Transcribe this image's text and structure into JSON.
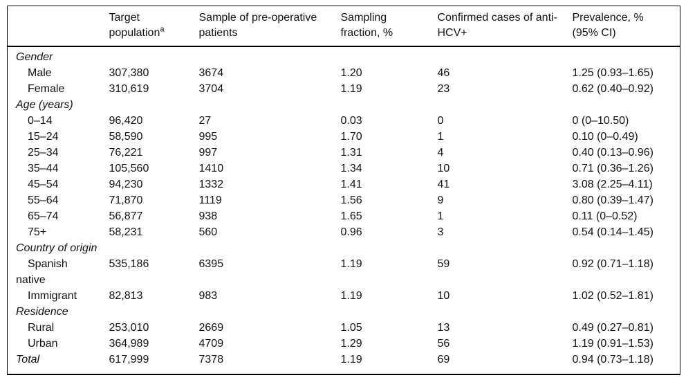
{
  "colors": {
    "text": "#111111",
    "border": "#000000",
    "background": "#ffffff"
  },
  "table": {
    "columns": [
      {
        "key": "label",
        "label": ""
      },
      {
        "key": "target_population",
        "label": "Target\npopulation",
        "superscript": "a"
      },
      {
        "key": "sample",
        "label": "Sample of pre-operative\npatients"
      },
      {
        "key": "sampling_fraction",
        "label": "Sampling\nfraction, %"
      },
      {
        "key": "confirmed_cases",
        "label": "Confirmed cases of anti-\nHCV+"
      },
      {
        "key": "prevalence",
        "label": "Prevalence, %\n(95% CI)"
      }
    ],
    "rows": [
      {
        "type": "section",
        "label": "Gender"
      },
      {
        "type": "data",
        "label": "Male",
        "target_population": "307,380",
        "sample": "3674",
        "sampling_fraction": "1.20",
        "confirmed_cases": "46",
        "prevalence": "1.25 (0.93–1.65)"
      },
      {
        "type": "data",
        "label": "Female",
        "target_population": "310,619",
        "sample": "3704",
        "sampling_fraction": "1.19",
        "confirmed_cases": "23",
        "prevalence": "0.62 (0.40–0.92)"
      },
      {
        "type": "section",
        "label": "Age (years)"
      },
      {
        "type": "data",
        "label": "0–14",
        "target_population": "96,420",
        "sample": "27",
        "sampling_fraction": "0.03",
        "confirmed_cases": "0",
        "prevalence": "0 (0–10.50)"
      },
      {
        "type": "data",
        "label": "15–24",
        "target_population": "58,590",
        "sample": "995",
        "sampling_fraction": "1.70",
        "confirmed_cases": "1",
        "prevalence": "0.10 (0–0.49)"
      },
      {
        "type": "data",
        "label": "25–34",
        "target_population": "76,221",
        "sample": "997",
        "sampling_fraction": "1.31",
        "confirmed_cases": "4",
        "prevalence": "0.40 (0.13–0.96)"
      },
      {
        "type": "data",
        "label": "35–44",
        "target_population": "105,560",
        "sample": "1410",
        "sampling_fraction": "1.34",
        "confirmed_cases": "10",
        "prevalence": "0.71 (0.36–1.26)"
      },
      {
        "type": "data",
        "label": "45–54",
        "target_population": "94,230",
        "sample": "1332",
        "sampling_fraction": "1.41",
        "confirmed_cases": "41",
        "prevalence": "3.08 (2.25–4.11)"
      },
      {
        "type": "data",
        "label": "55–64",
        "target_population": "71,870",
        "sample": "1119",
        "sampling_fraction": "1.56",
        "confirmed_cases": "9",
        "prevalence": "0.80 (0.39–1.47)"
      },
      {
        "type": "data",
        "label": "65–74",
        "target_population": "56,877",
        "sample": "938",
        "sampling_fraction": "1.65",
        "confirmed_cases": "1",
        "prevalence": "0.11 (0–0.52)"
      },
      {
        "type": "data",
        "label": "75+",
        "target_population": "58,231",
        "sample": "560",
        "sampling_fraction": "0.96",
        "confirmed_cases": "3",
        "prevalence": "0.54 (0.14–1.45)"
      },
      {
        "type": "section",
        "label": "Country of origin"
      },
      {
        "type": "data",
        "label": "Spanish\nnative",
        "target_population": "535,186",
        "sample": "6395",
        "sampling_fraction": "1.19",
        "confirmed_cases": "59",
        "prevalence": "0.92 (0.71–1.18)"
      },
      {
        "type": "data",
        "label": "Immigrant",
        "target_population": "82,813",
        "sample": "983",
        "sampling_fraction": "1.19",
        "confirmed_cases": "10",
        "prevalence": "1.02 (0.52–1.81)"
      },
      {
        "type": "section",
        "label": "Residence"
      },
      {
        "type": "data",
        "label": "Rural",
        "target_population": "253,010",
        "sample": "2669",
        "sampling_fraction": "1.05",
        "confirmed_cases": "13",
        "prevalence": "0.49 (0.27–0.81)"
      },
      {
        "type": "data",
        "label": "Urban",
        "target_population": "364,989",
        "sample": "4709",
        "sampling_fraction": "1.29",
        "confirmed_cases": "56",
        "prevalence": "1.19 (0.91–1.53)"
      },
      {
        "type": "total",
        "label": "Total",
        "target_population": "617,999",
        "sample": "7378",
        "sampling_fraction": "1.19",
        "confirmed_cases": "69",
        "prevalence": "0.94 (0.73–1.18)"
      }
    ]
  }
}
